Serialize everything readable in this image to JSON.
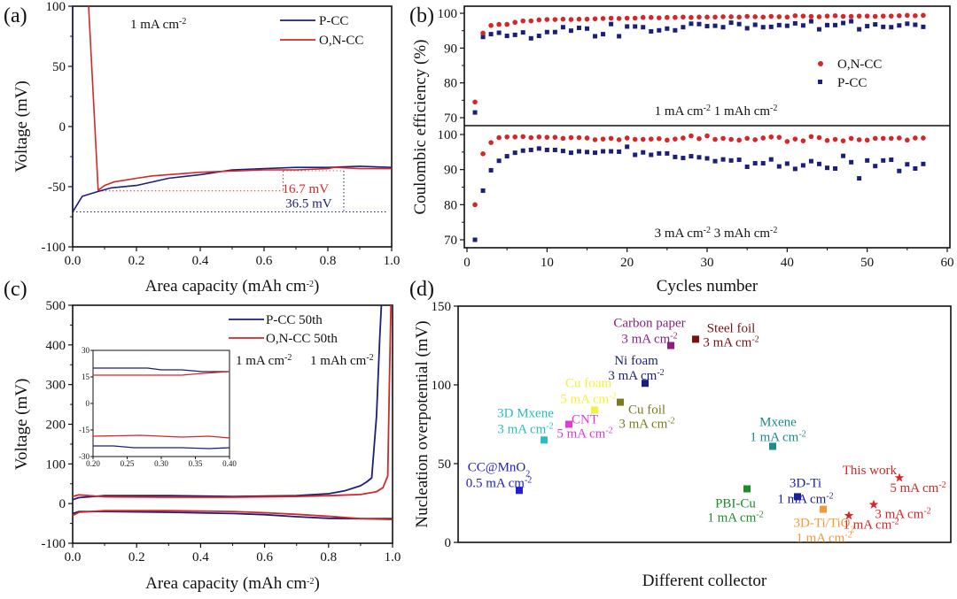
{
  "chart_data": [
    {
      "id": "a",
      "panel_label": "(a)",
      "type": "line",
      "xlabel": "Area capacity (mAh cm",
      "xlabel_sup": "-2",
      "xlabel_close": ")",
      "ylabel": "Voltage (mV)",
      "xlim": [
        0.0,
        1.0
      ],
      "ylim": [
        -100,
        100
      ],
      "xticks": [
        "0.0",
        "0.2",
        "0.4",
        "0.6",
        "0.8",
        "1.0"
      ],
      "yticks": [
        "100",
        "50",
        "0",
        "-50",
        "-100"
      ],
      "condition": "1 mA cm",
      "condition_sup": "-2",
      "legend_position": "top-right",
      "series": [
        {
          "name": "P-CC",
          "color": "#1a1f7a",
          "x": [
            0.0,
            0.0,
            0.03,
            0.08,
            0.12,
            0.2,
            0.25,
            0.3,
            0.4,
            0.5,
            0.6,
            0.7,
            0.8,
            0.9,
            1.0
          ],
          "y": [
            100,
            -71,
            -58,
            -54,
            -51,
            -49,
            -46,
            -43,
            -40,
            -36,
            -35,
            -34,
            -34,
            -33,
            -34
          ]
        },
        {
          "name": "O,N-CC",
          "color": "#d62728",
          "x": [
            0.05,
            0.08,
            0.1,
            0.13,
            0.2,
            0.25,
            0.3,
            0.4,
            0.5,
            0.6,
            0.7,
            0.8,
            0.82,
            0.9,
            1.0
          ],
          "y": [
            100,
            -53,
            -49,
            -46,
            -43,
            -41,
            -40,
            -38,
            -37,
            -36,
            -36,
            -35,
            -34,
            -35,
            -35
          ]
        }
      ],
      "annotations": [
        {
          "text": "16.7 mV",
          "color": "#d62728"
        },
        {
          "text": "36.5 mV",
          "color": "#1a1f7a"
        }
      ],
      "reference_lines": {
        "p_cc_min": -71,
        "on_cc_min": -53.5,
        "plateau": -36.8,
        "x_on": 0.66,
        "x_p": 0.85
      }
    },
    {
      "id": "b",
      "panel_label": "(b)",
      "type": "scatter",
      "xlabel": "Cycles number",
      "ylabel": "Coulombic efficiency (%)",
      "xlim": [
        0,
        60
      ],
      "ylim": [
        68,
        102
      ],
      "xticks": [
        "0",
        "10",
        "20",
        "30",
        "40",
        "50",
        "60"
      ],
      "yticks": [
        "100",
        "90",
        "80",
        "70"
      ],
      "legend_position": "center-right",
      "legend": [
        {
          "name": "O,N-CC",
          "color": "#d62728",
          "marker": "circle"
        },
        {
          "name": "P-CC",
          "color": "#1a1f7a",
          "marker": "square"
        }
      ],
      "subplots": [
        {
          "condition": "1 mA cm",
          "condition_sup1": "-2",
          "condition_mid": " 1 mAh cm",
          "condition_sup2": "-2",
          "series": [
            {
              "name": "O,N-CC",
              "values": [
                74.5,
                94.3,
                96.5,
                96.8,
                96.8,
                97.4,
                97.8,
                97.8,
                98.1,
                98.2,
                98.2,
                98.3,
                98.2,
                98.3,
                98.3,
                98.4,
                98.5,
                98.6,
                98.5,
                98.6,
                98.6,
                98.8,
                98.8,
                98.7,
                98.8,
                98.8,
                98.9,
                98.8,
                98.9,
                98.9,
                98.9,
                99.0,
                99.0,
                98.9,
                99.1,
                99.0,
                98.9,
                99.1,
                99.0,
                98.9,
                99.3,
                99.2,
                99.1,
                99.0,
                99.2,
                99.3,
                99.1,
                99.1,
                99.2,
                99.2,
                99.1,
                99.2,
                99.2,
                99.3,
                99.4,
                99.3,
                99.4
              ]
            },
            {
              "name": "P-CC",
              "values": [
                71.5,
                93.2,
                94.0,
                94.4,
                93.5,
                93.8,
                94.5,
                92.8,
                93.5,
                94.6,
                94.6,
                96.0,
                95.0,
                95.8,
                95.6,
                93.4,
                94.0,
                96.9,
                93.4,
                96.2,
                96.2,
                96.0,
                94.8,
                95.1,
                95.6,
                95.1,
                96.0,
                97.0,
                96.9,
                96.3,
                96.4,
                96.0,
                97.3,
                96.9,
                95.7,
                96.7,
                96.0,
                96.1,
                96.6,
                96.4,
                97.1,
                96.5,
                97.7,
                95.4,
                96.6,
                96.6,
                97.2,
                97.7,
                95.4,
                96.3,
                96.8,
                96.1,
                96.0,
                96.5,
                97.0,
                96.7,
                96.1
              ]
            }
          ]
        },
        {
          "condition": "3 mA cm",
          "condition_sup1": "-2",
          "condition_mid": " 3 mAh cm",
          "condition_sup2": "-2",
          "series": [
            {
              "name": "O,N-CC",
              "values": [
                80.0,
                94.5,
                97.7,
                99.1,
                99.3,
                99.3,
                99.4,
                99.1,
                99.3,
                99.2,
                99.2,
                98.9,
                99.1,
                99.1,
                99.0,
                98.5,
                98.7,
                98.9,
                98.5,
                99.0,
                98.6,
                98.6,
                98.7,
                98.8,
                98.4,
                98.7,
                99.0,
                99.6,
                98.8,
                99.6,
                98.6,
                98.9,
                98.6,
                98.4,
                98.9,
                98.5,
                99.0,
                99.3,
                99.2,
                98.0,
                98.7,
                98.2,
                99.4,
                99.1,
                98.3,
                98.6,
                98.2,
                98.9,
                98.5,
                98.4,
                98.9,
                98.9,
                98.9,
                99.0,
                98.4,
                99.0,
                99.0
              ]
            },
            {
              "name": "P-CC",
              "values": [
                70.0,
                84.0,
                89.8,
                92.5,
                93.8,
                94.8,
                95.4,
                95.6,
                96.0,
                95.6,
                95.6,
                95.3,
                94.8,
                95.2,
                95.0,
                94.8,
                95.2,
                95.2,
                95.1,
                96.5,
                94.2,
                94.9,
                94.2,
                94.6,
                94.6,
                93.6,
                93.3,
                93.8,
                93.5,
                93.2,
                92.4,
                92.9,
                92.6,
                92.8,
                90.8,
                91.8,
                91.8,
                92.9,
                90.9,
                91.7,
                90.2,
                91.2,
                92.4,
                91.6,
                90.5,
                90.3,
                93.9,
                92.1,
                87.5,
                92.6,
                91.0,
                92.6,
                92.8,
                89.6,
                91.5,
                90.3,
                91.6
              ]
            }
          ]
        }
      ]
    },
    {
      "id": "c",
      "panel_label": "(c)",
      "type": "line",
      "xlabel": "Area capacity (mAh cm",
      "xlabel_sup": "-2",
      "xlabel_close": ")",
      "ylabel": "Voltage (mV)",
      "xlim": [
        0.0,
        1.0
      ],
      "ylim": [
        -100,
        500
      ],
      "xticks": [
        "0.0",
        "0.2",
        "0.4",
        "0.6",
        "0.8",
        "1.0"
      ],
      "yticks": [
        "500",
        "400",
        "300",
        "200",
        "100",
        "0",
        "-100"
      ],
      "condition_a": "1 mA cm",
      "condition_a_sup": "-2",
      "condition_b": "1 mAh cm",
      "condition_b_sup": "-2",
      "legend_position": "top-right",
      "series": [
        {
          "name": "P-CC 50th",
          "color": "#1a1f7a",
          "charge_x": [
            0.0,
            0.02,
            0.1,
            0.3,
            0.5,
            0.7,
            0.8,
            0.85,
            0.9,
            0.92,
            0.935,
            0.95,
            0.96,
            0.965
          ],
          "charge_y": [
            10,
            15,
            20,
            20,
            18,
            20,
            25,
            32,
            45,
            55,
            65,
            220,
            420,
            500
          ],
          "discharge_x": [
            0.0,
            0.02,
            0.1,
            0.3,
            0.5,
            0.6,
            0.7,
            0.8,
            0.9,
            1.0
          ],
          "discharge_y": [
            -25,
            -20,
            -20,
            -22,
            -25,
            -28,
            -33,
            -37,
            -38,
            -38
          ]
        },
        {
          "name": "O,N-CC 50th",
          "color": "#d62728",
          "charge_x": [
            0.0,
            0.02,
            0.1,
            0.3,
            0.5,
            0.7,
            0.8,
            0.9,
            0.95,
            0.97,
            0.985,
            0.99,
            0.995
          ],
          "charge_y": [
            18,
            22,
            17,
            16,
            16,
            18,
            20,
            23,
            30,
            40,
            70,
            300,
            500
          ],
          "discharge_x": [
            0.0,
            0.02,
            0.1,
            0.3,
            0.5,
            0.6,
            0.7,
            0.8,
            0.9,
            1.0
          ],
          "discharge_y": [
            -30,
            -22,
            -18,
            -18,
            -20,
            -23,
            -27,
            -32,
            -38,
            -40
          ]
        }
      ],
      "inset": {
        "xlim": [
          0.2,
          0.4
        ],
        "ylim": [
          -30,
          30
        ],
        "xticks": [
          "0.20",
          "0.25",
          "0.30",
          "0.35",
          "0.40"
        ],
        "yticks": [
          "30",
          "15",
          "0",
          "-15",
          "-30"
        ],
        "series": [
          {
            "name": "P-CC 50th",
            "color": "#1a1f7a",
            "upper_x": [
              0.2,
              0.28,
              0.3,
              0.33,
              0.36,
              0.4
            ],
            "upper_y": [
              20,
              20,
              19,
              19,
              18,
              18
            ],
            "lower_x": [
              0.2,
              0.23,
              0.26,
              0.3,
              0.33,
              0.37,
              0.4
            ],
            "lower_y": [
              -24,
              -24,
              -25,
              -25,
              -25,
              -25.5,
              -25
            ]
          },
          {
            "name": "O,N-CC 50th",
            "color": "#d62728",
            "upper_x": [
              0.2,
              0.33,
              0.36,
              0.4
            ],
            "upper_y": [
              16,
              16,
              17,
              18
            ],
            "lower_x": [
              0.2,
              0.27,
              0.33,
              0.37,
              0.4
            ],
            "lower_y": [
              -18.5,
              -18,
              -19,
              -18.5,
              -19.5
            ]
          }
        ]
      }
    },
    {
      "id": "d",
      "panel_label": "(d)",
      "type": "scatter",
      "xlabel": "Different collector",
      "ylabel": "Nucleation overpotential (mV)",
      "ylim": [
        0,
        150
      ],
      "yticks": [
        "150",
        "100",
        "50",
        "0"
      ],
      "points": [
        {
          "name": "CC@MnO",
          "sub": "2",
          "cond": "0.5 mA cm",
          "cond_sup": "-2",
          "index": 1,
          "value": 33,
          "color": "#2020d0",
          "marker": "square"
        },
        {
          "name": "3D Mxene",
          "cond": "3 mA cm",
          "cond_sup": "-2",
          "index": 2,
          "value": 65,
          "color": "#2bbcbc",
          "marker": "square"
        },
        {
          "name": "CNT",
          "cond": "5 mA cm",
          "cond_sup": "-2",
          "index": 3,
          "value": 75,
          "color": "#e03ad8",
          "marker": "square"
        },
        {
          "name": "Cu foam",
          "cond": "5 mA cm",
          "cond_sup": "-2",
          "index": 4,
          "value": 84,
          "color": "#f2f23a",
          "marker": "square"
        },
        {
          "name": "Cu foil",
          "cond": "3 mA cm",
          "cond_sup": "-2",
          "index": 5,
          "value": 89,
          "color": "#7a7a20",
          "marker": "square"
        },
        {
          "name": "Ni foam",
          "cond": "3 mA cm",
          "cond_sup": "-2",
          "index": 6,
          "value": 101,
          "color": "#1a1f7a",
          "marker": "square"
        },
        {
          "name": "Carbon paper",
          "cond": "3 mA cm",
          "cond_sup": "-2",
          "index": 7,
          "value": 125,
          "color": "#8a1f82",
          "marker": "square"
        },
        {
          "name": "Steel foil",
          "cond": "3 mA cm",
          "cond_sup": "-2",
          "index": 8,
          "value": 129,
          "color": "#7a1010",
          "marker": "square"
        },
        {
          "name": "PBI-Cu",
          "cond": "1 mA cm",
          "cond_sup": "-2",
          "index": 9,
          "value": 34,
          "color": "#1f8a2a",
          "marker": "square"
        },
        {
          "name": "Mxene",
          "cond": "1 mA cm",
          "cond_sup": "-2",
          "index": 10,
          "value": 61,
          "color": "#1f8a8a",
          "marker": "square"
        },
        {
          "name": "3D-Ti",
          "cond": "1 mA cm",
          "cond_sup": "-2",
          "index": 11,
          "value": 29,
          "color": "#1a1f9a",
          "marker": "square"
        },
        {
          "name": "3D-Ti/TiO",
          "sub": "2",
          "cond": "1 mA cm",
          "cond_sup": "-2",
          "index": 12,
          "value": 21,
          "color": "#f29a3a",
          "marker": "square"
        },
        {
          "name": "This work",
          "cond": "1 mA cm",
          "cond_sup": "-2",
          "index": 13,
          "value": 17,
          "color": "#d62728",
          "marker": "star"
        },
        {
          "name": "This work",
          "cond": "3 mA cm",
          "cond_sup": "-2",
          "index": 14,
          "value": 24,
          "color": "#d62728",
          "marker": "star"
        },
        {
          "name": "This work",
          "cond": "5 mA cm",
          "cond_sup": "-2",
          "index": 15,
          "value": 41,
          "color": "#d62728",
          "marker": "star"
        }
      ],
      "this_work_label": "This work"
    }
  ]
}
